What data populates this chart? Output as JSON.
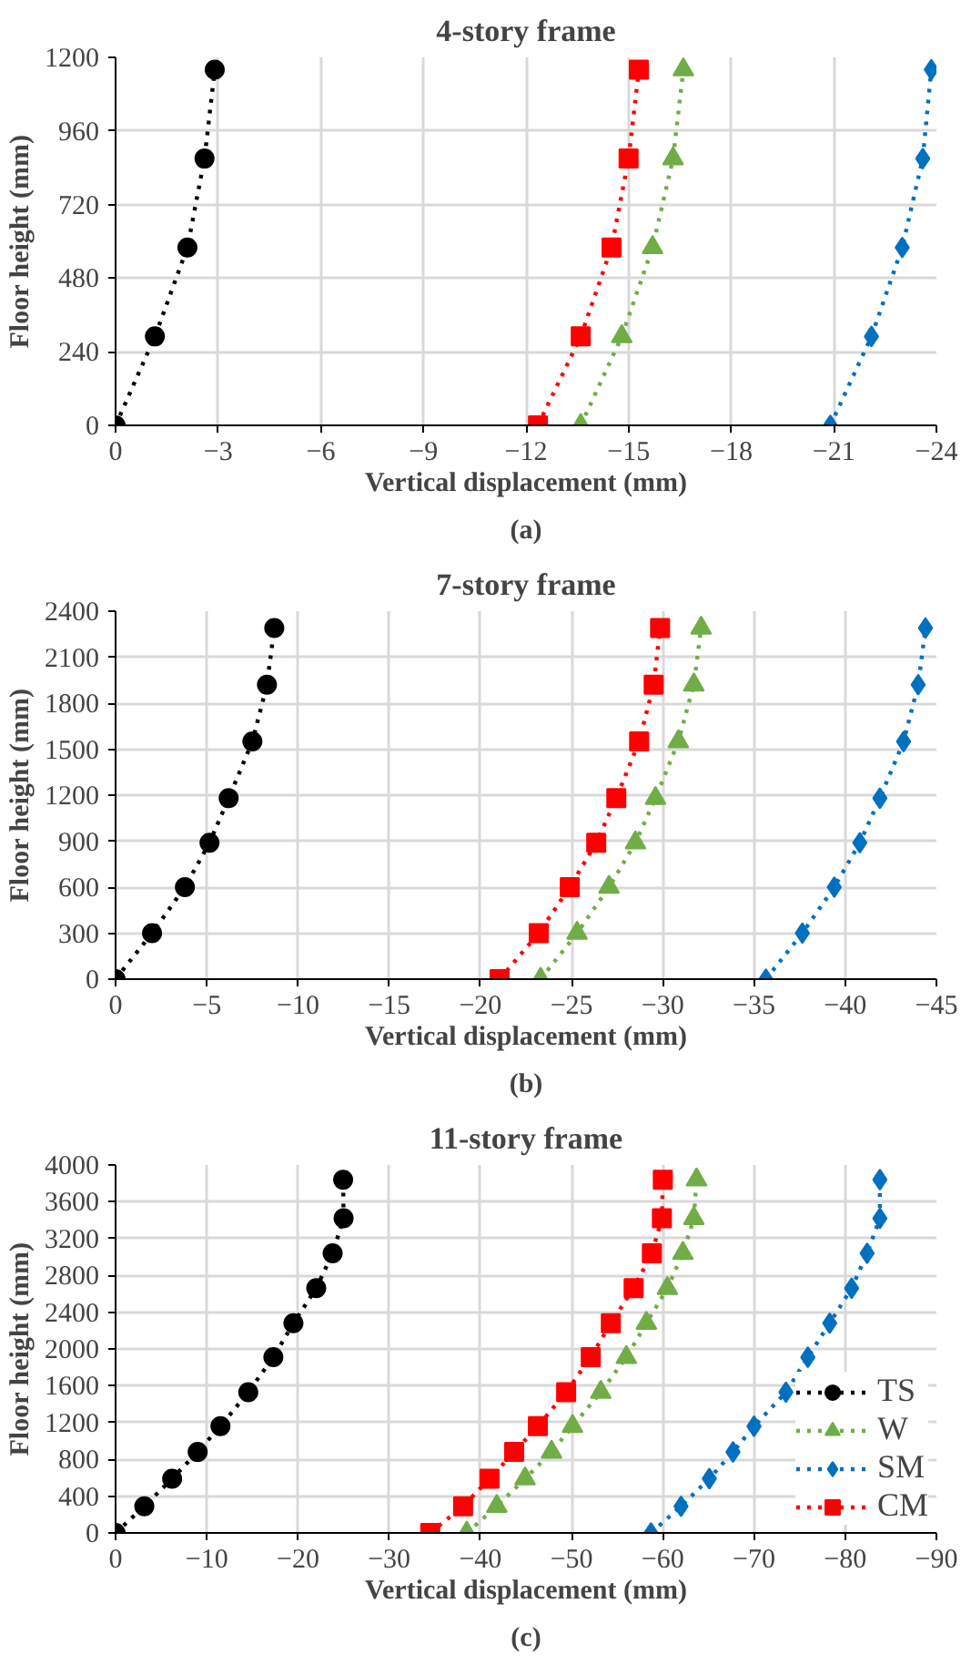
{
  "chart_data": [
    {
      "type": "line",
      "title": "4-story frame",
      "xlabel": "Vertical displacement (mm)",
      "ylabel": "Floor height (mm)",
      "annotations": [
        "(a)"
      ],
      "xlim": [
        0,
        -24
      ],
      "xticks": [
        0,
        -3,
        -6,
        -9,
        -12,
        -15,
        -18,
        -21,
        -24
      ],
      "ylim": [
        0,
        1200
      ],
      "yticks": [
        0,
        240,
        480,
        720,
        960,
        1200
      ],
      "grid": true,
      "line_style": "dotted",
      "legend": false,
      "series": [
        {
          "color": "#000000",
          "marker": "circle",
          "x": [
            0,
            -1.15,
            -2.1,
            -2.6,
            -2.9
          ],
          "values": [
            0,
            290,
            580,
            870,
            1160
          ]
        },
        {
          "color": "#70ad47",
          "marker": "triangle",
          "x": [
            -13.6,
            -14.8,
            -15.7,
            -16.3,
            -16.6
          ],
          "values": [
            0,
            290,
            580,
            870,
            1160
          ]
        },
        {
          "color": "#0070c0",
          "marker": "diamond",
          "x": [
            -20.9,
            -22.1,
            -23.0,
            -23.6,
            -23.85
          ],
          "values": [
            0,
            290,
            580,
            870,
            1160
          ]
        },
        {
          "color": "#ff0000",
          "marker": "square",
          "x": [
            -12.35,
            -13.6,
            -14.5,
            -15.0,
            -15.3
          ],
          "values": [
            0,
            290,
            580,
            870,
            1160
          ]
        }
      ]
    },
    {
      "type": "line",
      "title": "7-story frame",
      "xlabel": "Vertical displacement (mm)",
      "ylabel": "Floor height (mm)",
      "annotations": [
        "(b)"
      ],
      "xlim": [
        0,
        -45
      ],
      "xticks": [
        0,
        -5,
        -10,
        -15,
        -20,
        -25,
        -30,
        -35,
        -40,
        -45
      ],
      "ylim": [
        0,
        2400
      ],
      "yticks": [
        0,
        300,
        600,
        900,
        1200,
        1500,
        1800,
        2100,
        2400
      ],
      "grid": true,
      "line_style": "dotted",
      "legend": false,
      "series": [
        {
          "color": "#000000",
          "marker": "circle",
          "x": [
            0,
            -2.0,
            -3.8,
            -5.15,
            -6.2,
            -7.5,
            -8.3,
            -8.7
          ],
          "values": [
            0,
            300,
            600,
            890,
            1180,
            1550,
            1920,
            2290
          ]
        },
        {
          "color": "#70ad47",
          "marker": "triangle",
          "x": [
            -23.3,
            -25.3,
            -27.05,
            -28.5,
            -29.6,
            -30.85,
            -31.7,
            -32.1
          ],
          "values": [
            0,
            300,
            600,
            890,
            1180,
            1550,
            1920,
            2290
          ]
        },
        {
          "color": "#0070c0",
          "marker": "diamond",
          "x": [
            -35.65,
            -37.65,
            -39.4,
            -40.8,
            -41.9,
            -43.2,
            -44.0,
            -44.4
          ],
          "values": [
            0,
            300,
            600,
            890,
            1180,
            1550,
            1920,
            2290
          ]
        },
        {
          "color": "#ff0000",
          "marker": "square",
          "x": [
            -21.05,
            -23.2,
            -24.9,
            -26.35,
            -27.45,
            -28.7,
            -29.5,
            -29.85
          ],
          "values": [
            0,
            300,
            600,
            890,
            1180,
            1550,
            1920,
            2290
          ]
        }
      ]
    },
    {
      "type": "line",
      "title": "11-story frame",
      "xlabel": "Vertical displacement (mm)",
      "ylabel": "Floor height (mm)",
      "annotations": [
        "(c)"
      ],
      "xlim": [
        0,
        -90
      ],
      "xticks": [
        0,
        -10,
        -20,
        -30,
        -40,
        -50,
        -60,
        -70,
        -80,
        -90
      ],
      "ylim": [
        0,
        4000
      ],
      "yticks": [
        0,
        400,
        800,
        1200,
        1600,
        2000,
        2400,
        2800,
        3200,
        3600,
        4000
      ],
      "grid": true,
      "line_style": "dotted",
      "legend": "bottom right",
      "series": [
        {
          "name": "TS",
          "color": "#000000",
          "marker": "circle",
          "x": [
            0,
            -3.15,
            -6.2,
            -9.0,
            -11.5,
            -14.55,
            -17.3,
            -19.5,
            -22.0,
            -23.8,
            -25.0,
            -24.95
          ],
          "values": [
            0,
            290,
            590,
            880,
            1160,
            1530,
            1910,
            2280,
            2660,
            3040,
            3420,
            3840
          ]
        },
        {
          "name": "W",
          "color": "#70ad47",
          "marker": "triangle",
          "x": [
            -38.5,
            -41.8,
            -44.9,
            -47.8,
            -50.1,
            -53.2,
            -56.0,
            -58.2,
            -60.5,
            -62.2,
            -63.4,
            -63.7
          ],
          "values": [
            0,
            290,
            590,
            880,
            1160,
            1530,
            1910,
            2280,
            2660,
            3040,
            3420,
            3840
          ]
        },
        {
          "name": "SM",
          "color": "#0070c0",
          "marker": "diamond",
          "x": [
            -58.7,
            -62.0,
            -65.1,
            -67.7,
            -70.0,
            -73.5,
            -75.9,
            -78.3,
            -80.7,
            -82.4,
            -83.8,
            -83.8
          ],
          "values": [
            0,
            290,
            590,
            880,
            1160,
            1530,
            1910,
            2280,
            2660,
            3040,
            3420,
            3840
          ]
        },
        {
          "name": "CM",
          "color": "#ff0000",
          "marker": "square",
          "x": [
            -34.5,
            -38.1,
            -41.0,
            -43.7,
            -46.3,
            -49.4,
            -52.1,
            -54.3,
            -56.8,
            -58.8,
            -59.9,
            -60.0
          ],
          "values": [
            0,
            290,
            590,
            880,
            1160,
            1530,
            1910,
            2280,
            2660,
            3040,
            3420,
            3840
          ]
        }
      ]
    }
  ]
}
